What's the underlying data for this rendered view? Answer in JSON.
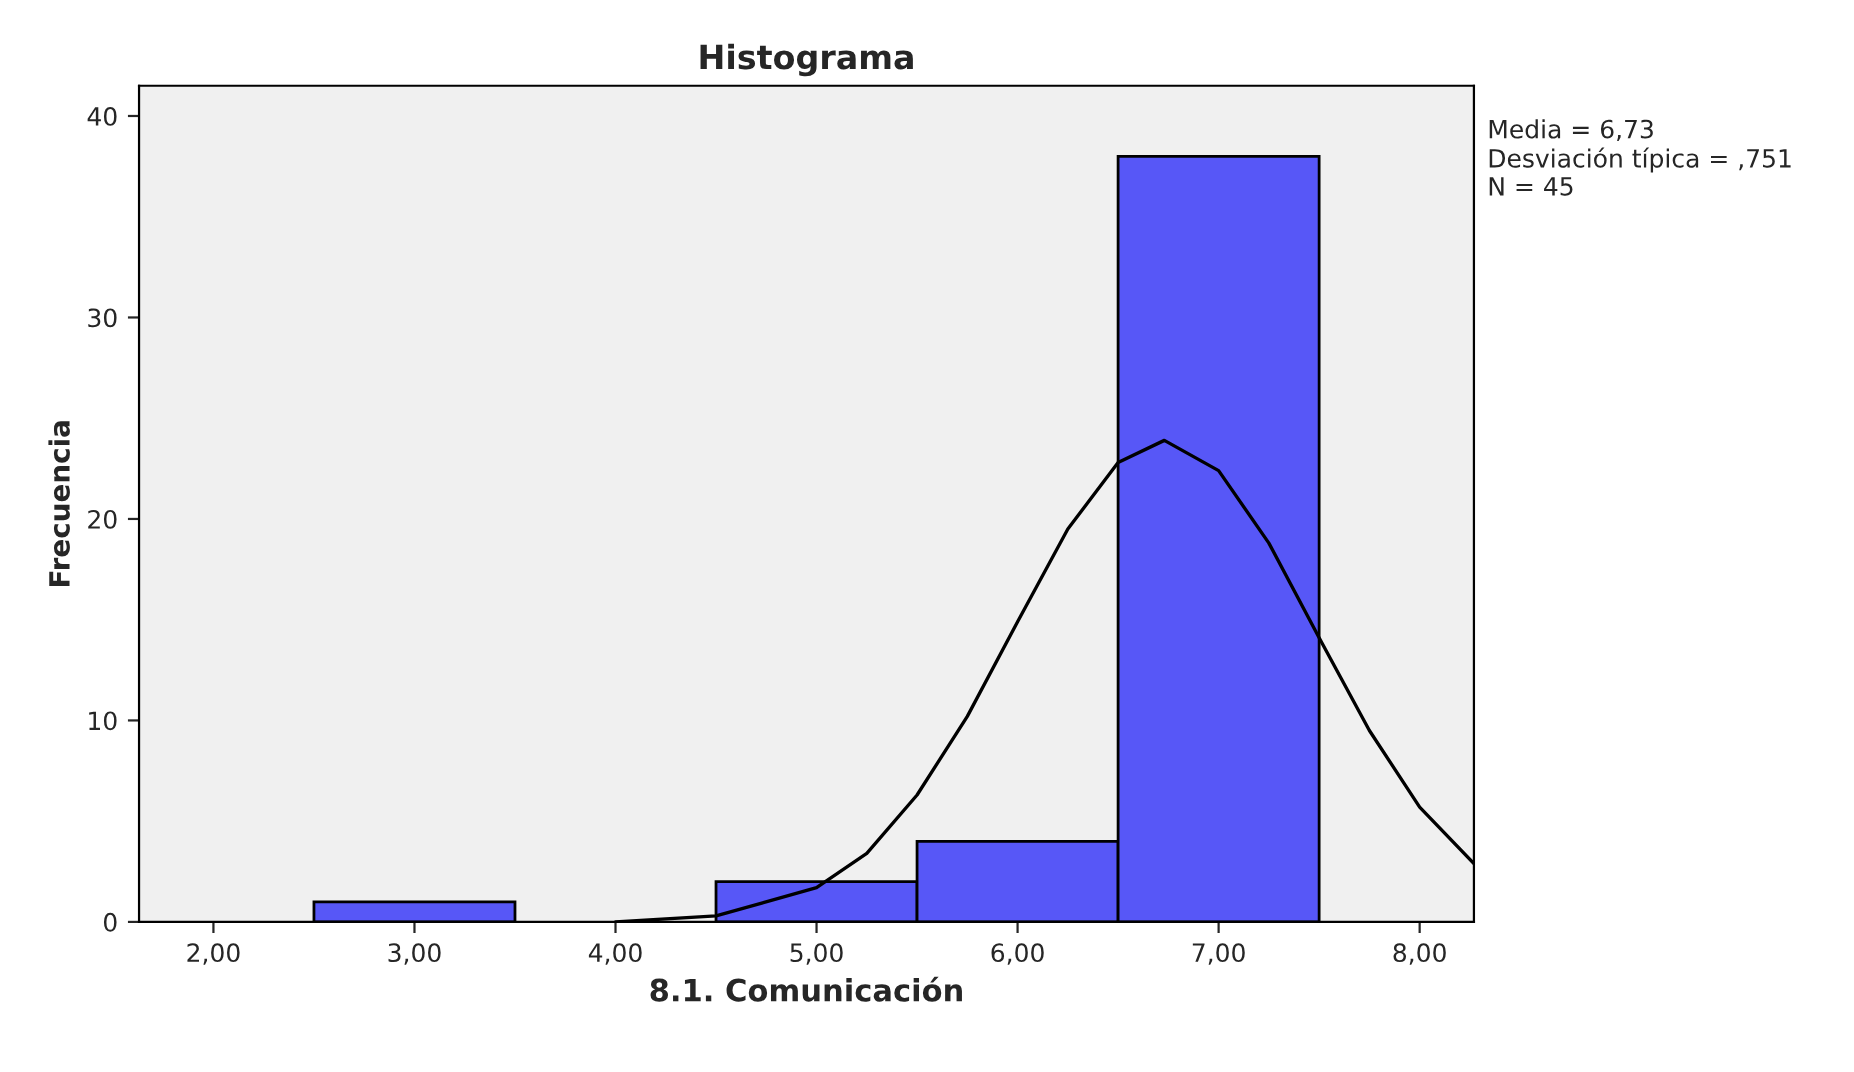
{
  "chart_data": {
    "type": "histogram",
    "title": "Histograma",
    "xlabel": "8.1. Comunicación",
    "ylabel": "Frecuencia",
    "bins": [
      2.5,
      3.5,
      4.5,
      5.5,
      6.5,
      7.5
    ],
    "values": [
      1,
      0,
      2,
      4,
      38
    ],
    "color": "#5757f7",
    "series": [
      {
        "type": "line",
        "color": "#000000",
        "x": [
          4.0,
          4.5,
          5.0,
          5.25,
          5.5,
          5.75,
          6.0,
          6.25,
          6.5,
          6.73,
          7.0,
          7.25,
          7.5,
          7.75,
          8.0,
          8.27
        ],
        "values": [
          0.0,
          0.3,
          1.7,
          3.4,
          6.3,
          10.2,
          14.9,
          19.5,
          22.8,
          23.9,
          22.4,
          18.8,
          14.1,
          9.5,
          5.7,
          2.9
        ]
      }
    ],
    "xlim": [
      1.63,
      8.27
    ],
    "xticks": [
      {
        "value": 2,
        "label": "2,00"
      },
      {
        "value": 3,
        "label": "3,00"
      },
      {
        "value": 4,
        "label": "4,00"
      },
      {
        "value": 5,
        "label": "5,00"
      },
      {
        "value": 6,
        "label": "6,00"
      },
      {
        "value": 7,
        "label": "7,00"
      },
      {
        "value": 8,
        "label": "8,00"
      }
    ],
    "ylim": [
      0,
      41.5
    ],
    "yticks": [
      0,
      10,
      20,
      30,
      40
    ],
    "grid": false,
    "annotations": [
      "Media = 6,73",
      "Desviación típica = ,751",
      "N = 45"
    ]
  }
}
